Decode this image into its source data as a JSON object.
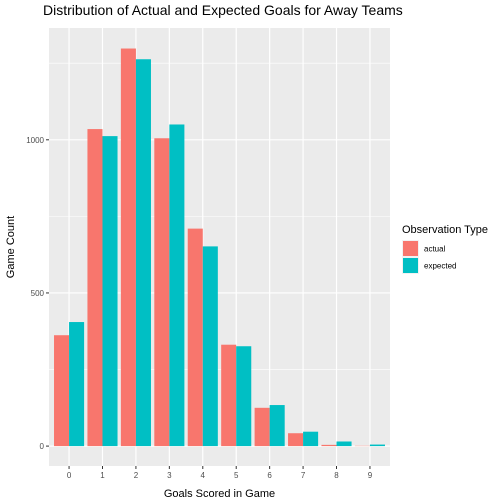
{
  "chart_data": {
    "type": "bar",
    "title": "Distribution of Actual and Expected Goals for Away Teams",
    "xlabel": "Goals Scored in Game",
    "ylabel": "Game Count",
    "categories": [
      "0",
      "1",
      "2",
      "3",
      "4",
      "5",
      "6",
      "7",
      "8",
      "9"
    ],
    "series": [
      {
        "name": "actual",
        "color": "#F8766D",
        "values": [
          362,
          1035,
          1298,
          1005,
          710,
          331,
          125,
          42,
          4,
          1
        ]
      },
      {
        "name": "expected",
        "color": "#00BFC4",
        "values": [
          405,
          1012,
          1263,
          1050,
          652,
          326,
          134,
          47,
          15,
          5
        ]
      }
    ],
    "yticks": [
      0,
      500,
      1000
    ],
    "ylim": [
      -65,
      1365
    ],
    "legend": {
      "title": "Observation Type",
      "position": "right"
    },
    "grid": true,
    "panel_background": "#EBEBEB",
    "grid_color": "#FFFFFF"
  }
}
